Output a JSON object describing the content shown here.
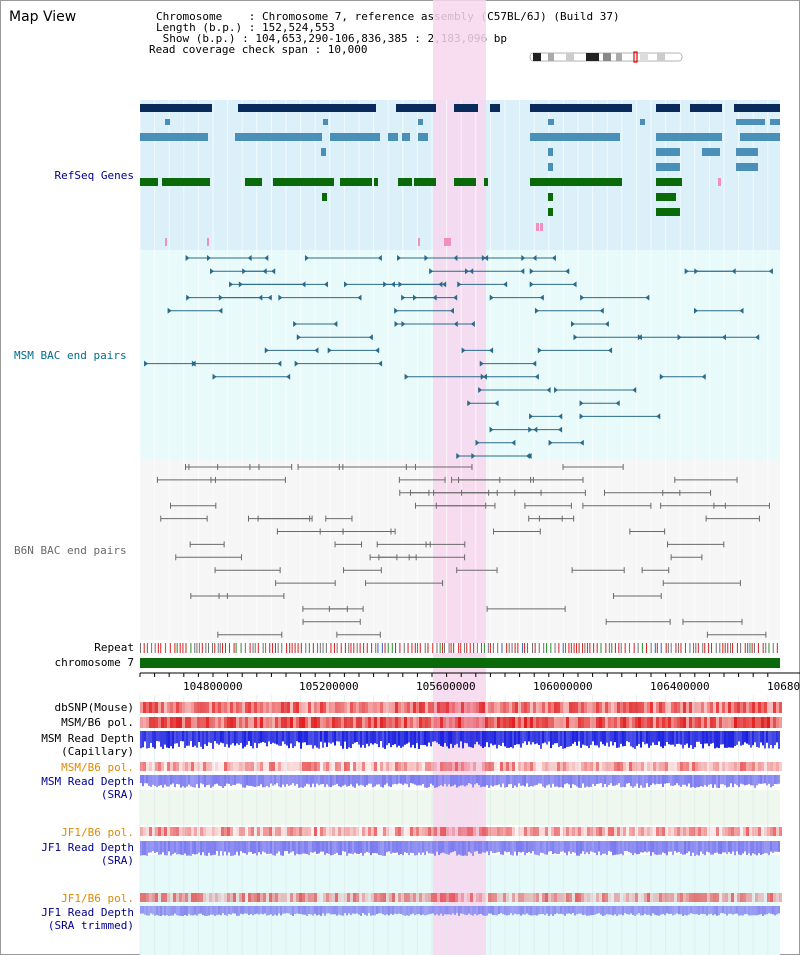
{
  "header": {
    "title": "Map View",
    "line_chromosome": "Chromosome    : Chromosome 7, reference assembly (C57BL/6J) (Build 37)",
    "line_length": "Length (b.p.) : 152,524,553",
    "line_show": " Show (b.p.) : 104,653,290-106,836,385 : 2,183,096 bp",
    "line_span": "Read coverage check span : 10,000"
  },
  "tracks": {
    "refseq": "RefSeq Genes",
    "msm_bac": "MSM BAC end pairs",
    "b6n_bac": "B6N BAC end pairs",
    "repeat": "Repeat",
    "chromosome": "chromosome 7",
    "dbsnp": "dbSNP(Mouse)",
    "msm_b6_pol": "MSM/B6 pol.",
    "msm_rd_cap_1": "MSM Read Depth",
    "msm_rd_cap_2": "(Capillary)",
    "msm_b6_pol2": "MSM/B6 pol.",
    "msm_rd_sra_1": "MSM Read Depth",
    "msm_rd_sra_2": "(SRA)",
    "jf1_b6_pol": "JF1/B6 pol.",
    "jf1_rd_sra_1": "JF1 Read Depth",
    "jf1_rd_sra_2": "(SRA)",
    "jf1_b6_pol2": "JF1/B6 pol.",
    "jf1_rd_trim_1": "JF1 Read Depth",
    "jf1_rd_trim_2": "(SRA trimmed)"
  },
  "axis": {
    "ticks": [
      "104800000",
      "105200000",
      "105600000",
      "106000000",
      "106400000",
      "10680"
    ]
  },
  "colors": {
    "refseq_bg": "#dcf0fa",
    "msm_bg": "#e8fafa",
    "highlight": "#f7d7ef",
    "gene_dark": "#0a2a5c",
    "gene_mid": "#4a8fb8",
    "gene_green": "#0a6a0a",
    "msm_pair": "#2a6a8a",
    "b6n_pair": "#6a6a6a",
    "chrom_bar": "#0a6a0a",
    "label_blue": "#00008b",
    "label_teal": "#006d8f",
    "label_orange": "#e08a00"
  }
}
